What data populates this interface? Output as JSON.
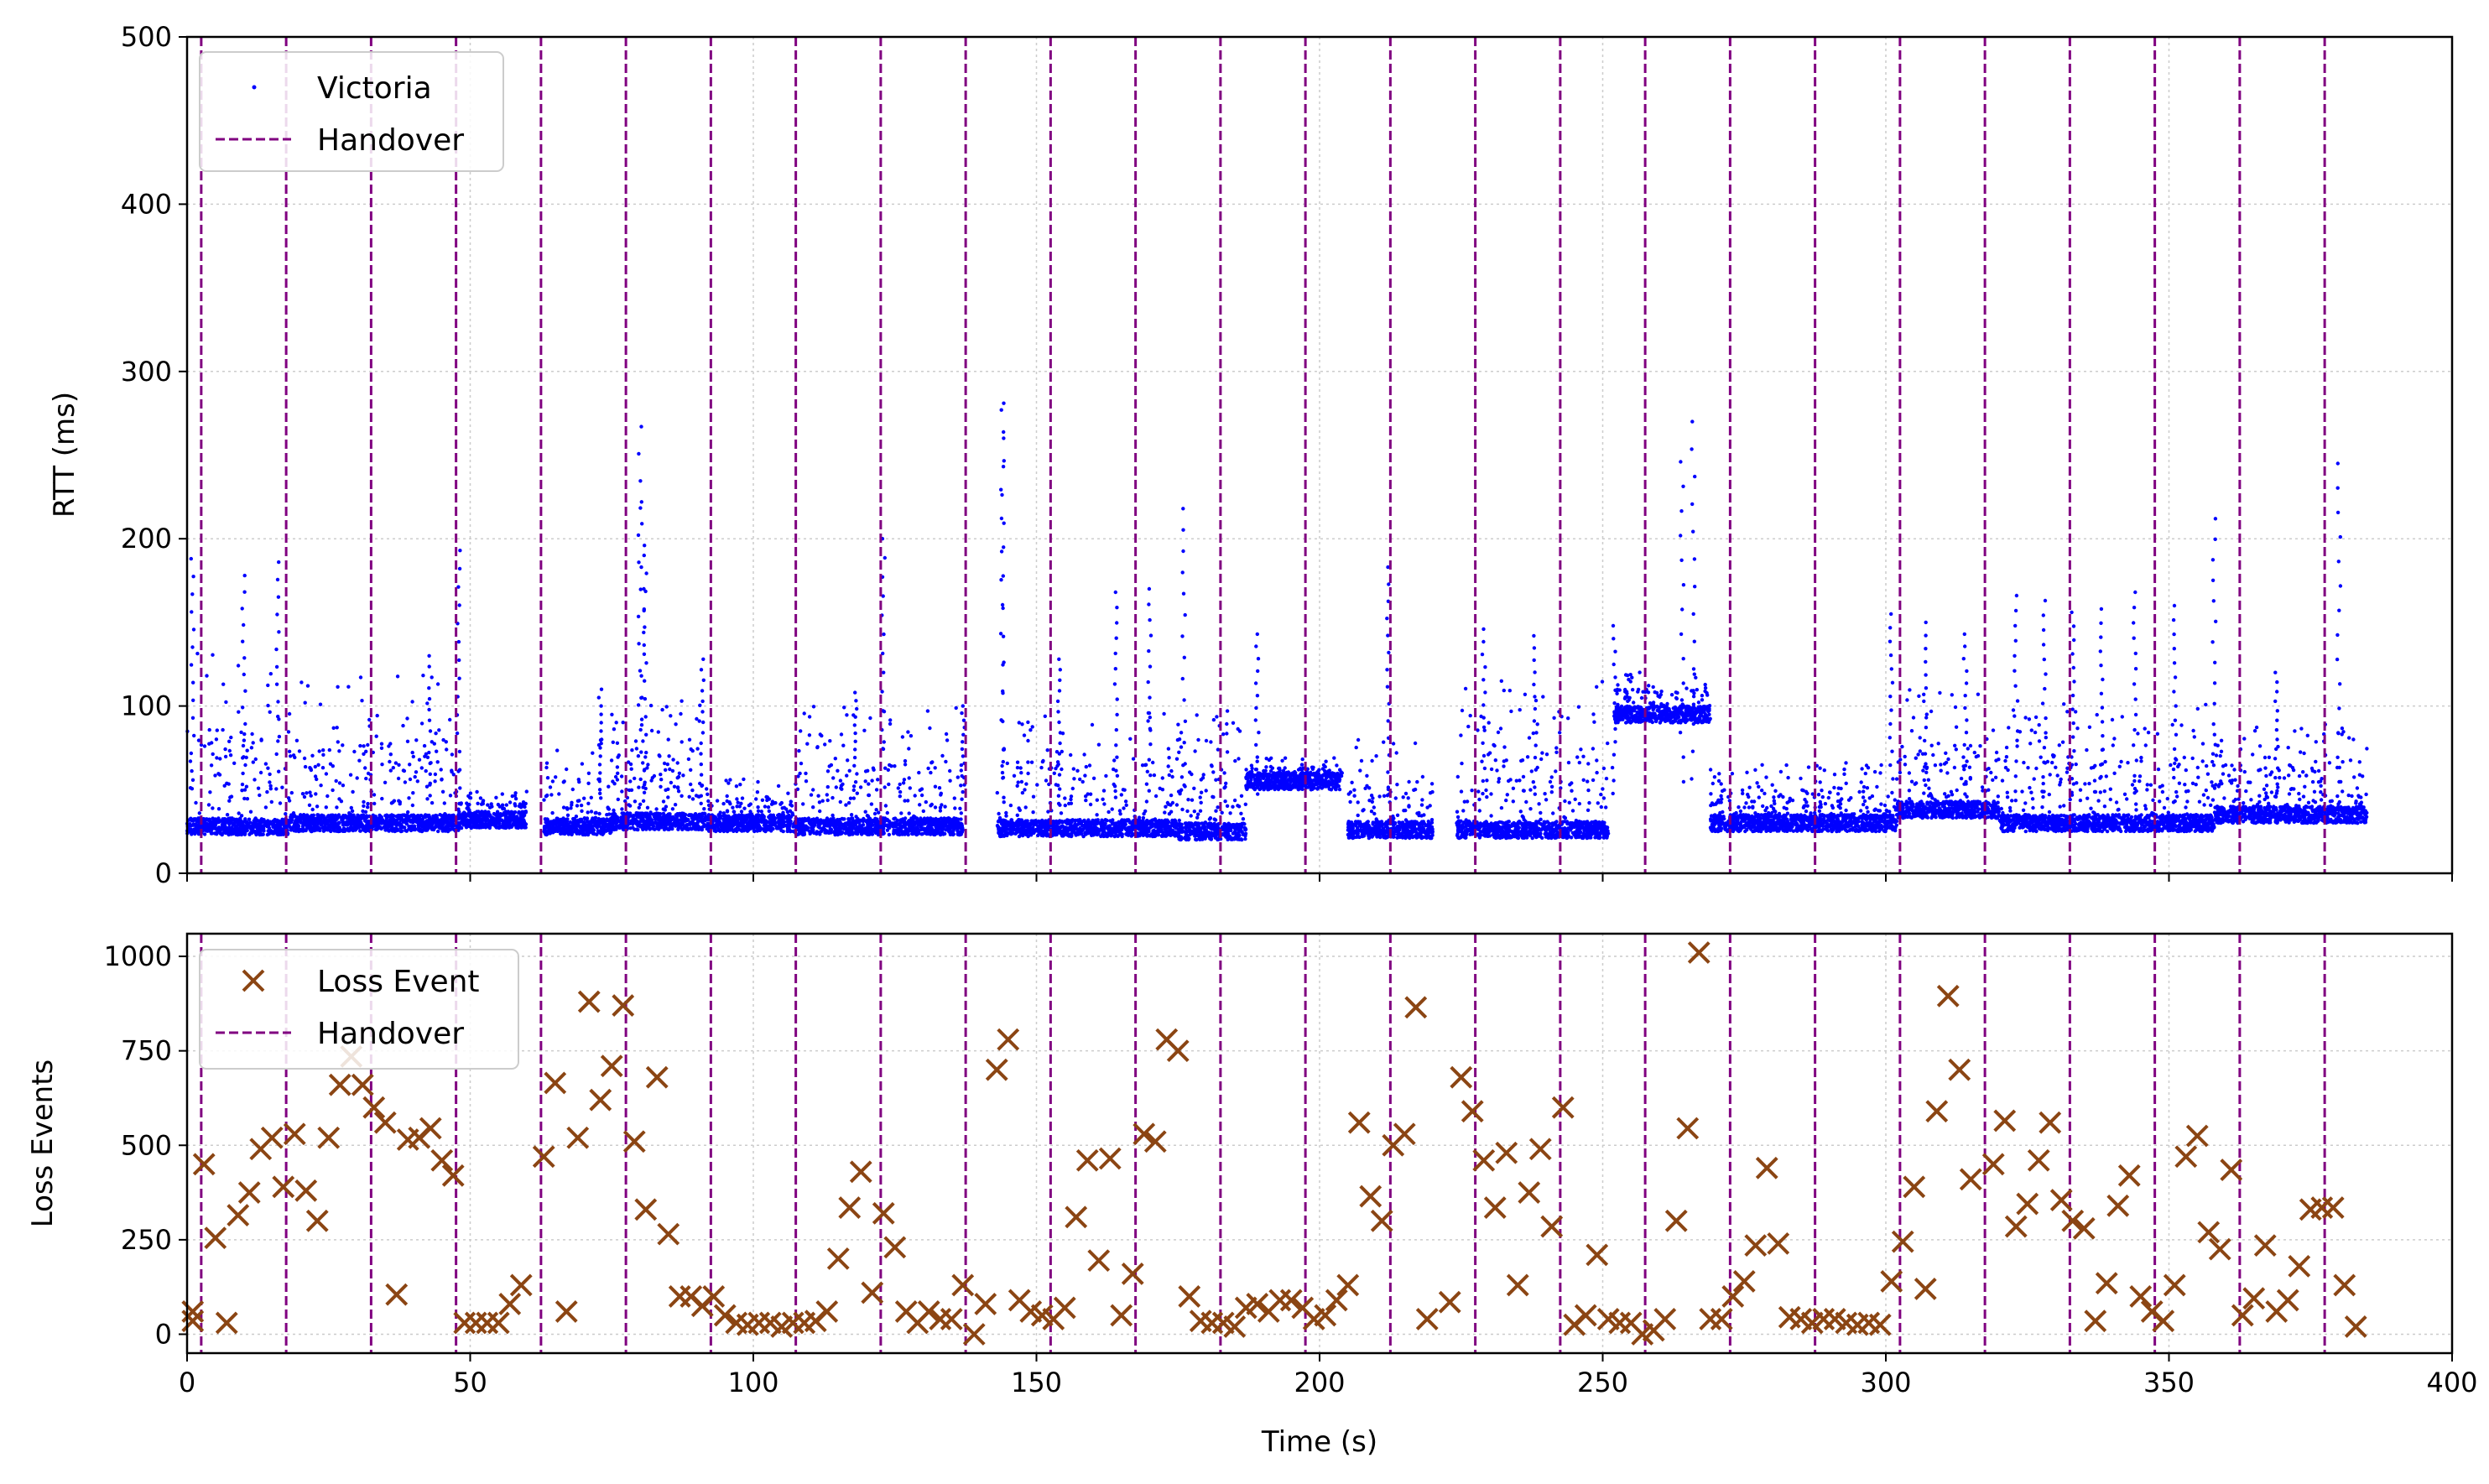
{
  "chart_data": [
    {
      "type": "scatter",
      "ylabel": "RTT (ms)",
      "xlim": [
        0,
        400
      ],
      "ylim": [
        0,
        500
      ],
      "xticks": [
        0,
        50,
        100,
        150,
        200,
        250,
        300,
        350,
        400
      ],
      "yticks": [
        0,
        100,
        200,
        300,
        400,
        500
      ],
      "grid": true,
      "legend_loc": "upper-left",
      "legend": [
        "Victoria",
        "Handover"
      ],
      "colors": {
        "rtt": "#0000ff",
        "handover": "#800080"
      },
      "segments": [
        {
          "x0": 0,
          "x1": 18,
          "base": 28,
          "burst": 58
        },
        {
          "x0": 18,
          "x1": 48,
          "base": 30,
          "burst": 50
        },
        {
          "x0": 48,
          "x1": 60,
          "base": 32,
          "burst": 10
        },
        {
          "x0": 63,
          "x1": 75,
          "base": 28,
          "burst": 30
        },
        {
          "x0": 75,
          "x1": 92,
          "base": 31,
          "burst": 40
        },
        {
          "x0": 92,
          "x1": 107,
          "base": 30,
          "burst": 15
        },
        {
          "x0": 107,
          "x1": 137,
          "base": 28,
          "burst": 40
        },
        {
          "x0": 143,
          "x1": 175,
          "base": 27,
          "burst": 40
        },
        {
          "x0": 175,
          "x1": 187,
          "base": 25,
          "burst": 40
        },
        {
          "x0": 187,
          "x1": 204,
          "base": 55,
          "burst": 8
        },
        {
          "x0": 205,
          "x1": 220,
          "base": 26,
          "burst": 30
        },
        {
          "x0": 224,
          "x1": 251,
          "base": 26,
          "burst": 50
        },
        {
          "x0": 252,
          "x1": 269,
          "base": 95,
          "burst": 15
        },
        {
          "x0": 269,
          "x1": 302,
          "base": 30,
          "burst": 20
        },
        {
          "x0": 302,
          "x1": 320,
          "base": 38,
          "burst": 40
        },
        {
          "x0": 320,
          "x1": 358,
          "base": 30,
          "burst": 40
        },
        {
          "x0": 358,
          "x1": 385,
          "base": 35,
          "burst": 30
        }
      ],
      "spikes": [
        {
          "x": 1,
          "y": 188
        },
        {
          "x": 10,
          "y": 178
        },
        {
          "x": 16,
          "y": 186
        },
        {
          "x": 43,
          "y": 130
        },
        {
          "x": 48,
          "y": 193
        },
        {
          "x": 73,
          "y": 110
        },
        {
          "x": 80,
          "y": 267
        },
        {
          "x": 80.5,
          "y": 222
        },
        {
          "x": 81,
          "y": 190
        },
        {
          "x": 91,
          "y": 128
        },
        {
          "x": 118,
          "y": 108
        },
        {
          "x": 123,
          "y": 200
        },
        {
          "x": 137,
          "y": 100
        },
        {
          "x": 144,
          "y": 281
        },
        {
          "x": 144,
          "y": 277
        },
        {
          "x": 154,
          "y": 128
        },
        {
          "x": 164,
          "y": 168
        },
        {
          "x": 170,
          "y": 170
        },
        {
          "x": 176,
          "y": 218
        },
        {
          "x": 189,
          "y": 143
        },
        {
          "x": 212,
          "y": 183
        },
        {
          "x": 229,
          "y": 146
        },
        {
          "x": 238,
          "y": 142
        },
        {
          "x": 252,
          "y": 148
        },
        {
          "x": 264,
          "y": 246
        },
        {
          "x": 266,
          "y": 270
        },
        {
          "x": 301,
          "y": 155
        },
        {
          "x": 307,
          "y": 150
        },
        {
          "x": 314,
          "y": 143
        },
        {
          "x": 323,
          "y": 166
        },
        {
          "x": 328,
          "y": 163
        },
        {
          "x": 333,
          "y": 156
        },
        {
          "x": 338,
          "y": 158
        },
        {
          "x": 344,
          "y": 168
        },
        {
          "x": 351,
          "y": 160
        },
        {
          "x": 358,
          "y": 212
        },
        {
          "x": 369,
          "y": 120
        },
        {
          "x": 380,
          "y": 245
        }
      ]
    },
    {
      "type": "scatter",
      "xlabel": "Time (s)",
      "ylabel": "Loss Events",
      "xlim": [
        0,
        400
      ],
      "ylim": [
        -50,
        1060
      ],
      "xticks": [
        0,
        50,
        100,
        150,
        200,
        250,
        300,
        350,
        400
      ],
      "yticks": [
        0,
        250,
        500,
        750,
        1000
      ],
      "grid": true,
      "legend_loc": "upper-left",
      "legend": [
        "Loss Event",
        "Handover"
      ],
      "colors": {
        "loss": "#8b4513",
        "handover": "#800080"
      },
      "points": [
        [
          1,
          60
        ],
        [
          1,
          35
        ],
        [
          3,
          450
        ],
        [
          5,
          255
        ],
        [
          7,
          30
        ],
        [
          9,
          315
        ],
        [
          11,
          375
        ],
        [
          13,
          490
        ],
        [
          15,
          520
        ],
        [
          17,
          390
        ],
        [
          19,
          530
        ],
        [
          21,
          380
        ],
        [
          23,
          300
        ],
        [
          25,
          520
        ],
        [
          27,
          660
        ],
        [
          29,
          735
        ],
        [
          31,
          660
        ],
        [
          33,
          600
        ],
        [
          35,
          560
        ],
        [
          37,
          105
        ],
        [
          39,
          515
        ],
        [
          41,
          520
        ],
        [
          43,
          545
        ],
        [
          45,
          460
        ],
        [
          47,
          420
        ],
        [
          49,
          30
        ],
        [
          51,
          30
        ],
        [
          53,
          30
        ],
        [
          55,
          30
        ],
        [
          57,
          80
        ],
        [
          59,
          130
        ],
        [
          63,
          470
        ],
        [
          65,
          665
        ],
        [
          67,
          60
        ],
        [
          69,
          520
        ],
        [
          71,
          880
        ],
        [
          73,
          620
        ],
        [
          75,
          710
        ],
        [
          77,
          870
        ],
        [
          79,
          510
        ],
        [
          81,
          330
        ],
        [
          83,
          680
        ],
        [
          85,
          265
        ],
        [
          87,
          100
        ],
        [
          89,
          100
        ],
        [
          91,
          75
        ],
        [
          93,
          100
        ],
        [
          95,
          50
        ],
        [
          97,
          30
        ],
        [
          99,
          25
        ],
        [
          101,
          30
        ],
        [
          103,
          30
        ],
        [
          105,
          20
        ],
        [
          107,
          30
        ],
        [
          109,
          30
        ],
        [
          111,
          35
        ],
        [
          113,
          60
        ],
        [
          115,
          200
        ],
        [
          117,
          335
        ],
        [
          119,
          430
        ],
        [
          121,
          110
        ],
        [
          123,
          320
        ],
        [
          125,
          230
        ],
        [
          127,
          60
        ],
        [
          129,
          30
        ],
        [
          131,
          60
        ],
        [
          133,
          40
        ],
        [
          135,
          40
        ],
        [
          137,
          130
        ],
        [
          139,
          0
        ],
        [
          141,
          80
        ],
        [
          143,
          700
        ],
        [
          145,
          780
        ],
        [
          147,
          90
        ],
        [
          149,
          60
        ],
        [
          151,
          50
        ],
        [
          153,
          40
        ],
        [
          155,
          70
        ],
        [
          157,
          310
        ],
        [
          159,
          460
        ],
        [
          161,
          195
        ],
        [
          163,
          465
        ],
        [
          165,
          50
        ],
        [
          167,
          160
        ],
        [
          169,
          530
        ],
        [
          171,
          510
        ],
        [
          173,
          780
        ],
        [
          175,
          750
        ],
        [
          177,
          100
        ],
        [
          179,
          35
        ],
        [
          181,
          30
        ],
        [
          183,
          30
        ],
        [
          185,
          20
        ],
        [
          187,
          70
        ],
        [
          189,
          80
        ],
        [
          191,
          60
        ],
        [
          193,
          90
        ],
        [
          195,
          90
        ],
        [
          197,
          70
        ],
        [
          199,
          40
        ],
        [
          201,
          50
        ],
        [
          203,
          90
        ],
        [
          205,
          130
        ],
        [
          207,
          560
        ],
        [
          209,
          365
        ],
        [
          211,
          300
        ],
        [
          213,
          500
        ],
        [
          215,
          530
        ],
        [
          217,
          865
        ],
        [
          219,
          40
        ],
        [
          223,
          85
        ],
        [
          225,
          680
        ],
        [
          227,
          590
        ],
        [
          229,
          460
        ],
        [
          231,
          335
        ],
        [
          233,
          480
        ],
        [
          235,
          130
        ],
        [
          237,
          375
        ],
        [
          239,
          490
        ],
        [
          241,
          285
        ],
        [
          243,
          600
        ],
        [
          245,
          25
        ],
        [
          247,
          50
        ],
        [
          249,
          210
        ],
        [
          251,
          40
        ],
        [
          253,
          30
        ],
        [
          255,
          30
        ],
        [
          257,
          0
        ],
        [
          259,
          10
        ],
        [
          261,
          40
        ],
        [
          263,
          300
        ],
        [
          265,
          545
        ],
        [
          267,
          1010
        ],
        [
          269,
          40
        ],
        [
          271,
          40
        ],
        [
          273,
          100
        ],
        [
          275,
          140
        ],
        [
          277,
          235
        ],
        [
          279,
          440
        ],
        [
          281,
          240
        ],
        [
          283,
          45
        ],
        [
          285,
          40
        ],
        [
          287,
          30
        ],
        [
          289,
          40
        ],
        [
          291,
          40
        ],
        [
          293,
          30
        ],
        [
          295,
          25
        ],
        [
          297,
          30
        ],
        [
          299,
          25
        ],
        [
          301,
          140
        ],
        [
          303,
          245
        ],
        [
          305,
          390
        ],
        [
          307,
          120
        ],
        [
          309,
          590
        ],
        [
          311,
          895
        ],
        [
          313,
          700
        ],
        [
          315,
          410
        ],
        [
          319,
          450
        ],
        [
          321,
          565
        ],
        [
          323,
          285
        ],
        [
          325,
          345
        ],
        [
          327,
          460
        ],
        [
          329,
          560
        ],
        [
          331,
          355
        ],
        [
          333,
          300
        ],
        [
          335,
          280
        ],
        [
          337,
          35
        ],
        [
          339,
          135
        ],
        [
          341,
          340
        ],
        [
          343,
          420
        ],
        [
          345,
          100
        ],
        [
          347,
          60
        ],
        [
          349,
          35
        ],
        [
          351,
          130
        ],
        [
          353,
          470
        ],
        [
          355,
          525
        ],
        [
          357,
          270
        ],
        [
          359,
          225
        ],
        [
          361,
          435
        ],
        [
          363,
          50
        ],
        [
          365,
          95
        ],
        [
          367,
          235
        ],
        [
          369,
          60
        ],
        [
          371,
          90
        ],
        [
          373,
          180
        ],
        [
          375,
          330
        ],
        [
          377,
          335
        ],
        [
          379,
          335
        ],
        [
          381,
          130
        ],
        [
          383,
          20
        ]
      ]
    }
  ],
  "handovers": [
    2.5,
    17.5,
    32.5,
    47.5,
    62.5,
    77.5,
    92.5,
    107.5,
    122.5,
    137.5,
    152.5,
    167.5,
    182.5,
    197.5,
    212.5,
    227.5,
    242.5,
    257.5,
    272.5,
    287.5,
    302.5,
    317.5,
    332.5,
    347.5,
    362.5,
    377.5
  ]
}
